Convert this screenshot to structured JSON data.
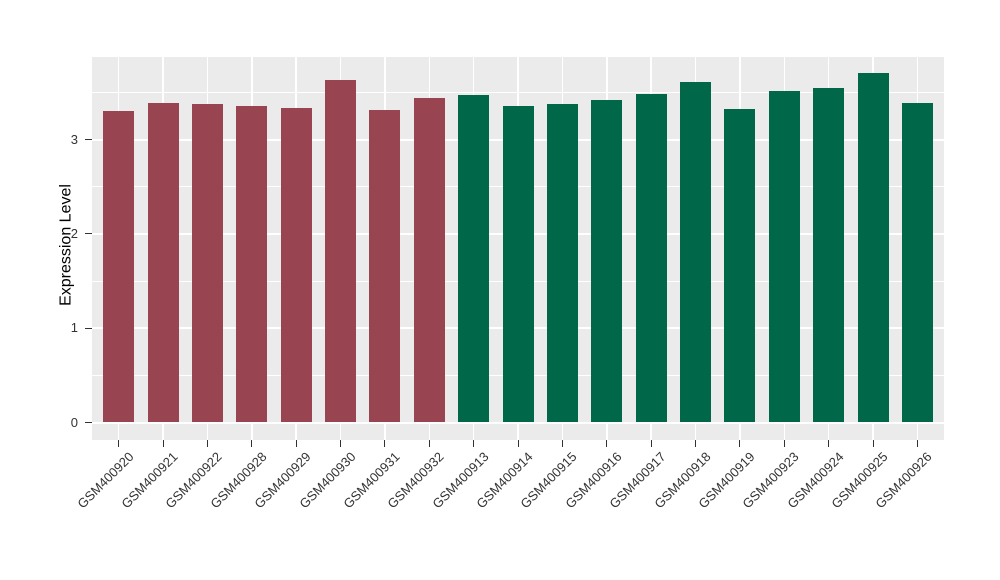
{
  "chart_data": {
    "type": "bar",
    "title": "",
    "xlabel": "",
    "ylabel": "Expression Level",
    "ylim": [
      -0.2,
      3.9
    ],
    "yticks": [
      0,
      1,
      2,
      3
    ],
    "yminor": [
      0.5,
      1.5,
      2.5,
      3.5
    ],
    "grid": "white major+minor horizontal lines and vertical line at each category on gray panel",
    "legend_position": "none",
    "categories": [
      "GSM400920",
      "GSM400921",
      "GSM400922",
      "GSM400928",
      "GSM400929",
      "GSM400930",
      "GSM400931",
      "GSM400932",
      "GSM400913",
      "GSM400914",
      "GSM400915",
      "GSM400916",
      "GSM400917",
      "GSM400918",
      "GSM400919",
      "GSM400923",
      "GSM400924",
      "GSM400925",
      "GSM400926"
    ],
    "values": [
      3.3,
      3.39,
      3.38,
      3.35,
      3.33,
      3.63,
      3.31,
      3.44,
      3.47,
      3.36,
      3.38,
      3.42,
      3.48,
      3.61,
      3.32,
      3.51,
      3.55,
      3.7,
      3.39
    ],
    "bar_groups": [
      "group1",
      "group1",
      "group1",
      "group1",
      "group1",
      "group1",
      "group1",
      "group1",
      "group2",
      "group2",
      "group2",
      "group2",
      "group2",
      "group2",
      "group2",
      "group2",
      "group2",
      "group2",
      "group2"
    ],
    "group_colors": {
      "group1": "#994451",
      "group2": "#006749"
    },
    "panel_bg": "#EBEBEB",
    "grid_color": "#FFFFFF",
    "tick_color": "#333333",
    "axis_title_color": "#000000"
  }
}
